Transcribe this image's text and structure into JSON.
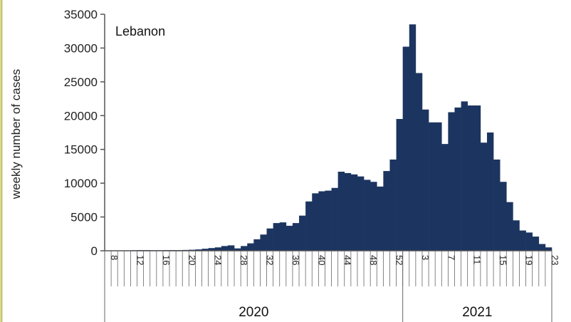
{
  "chart_data": {
    "type": "bar",
    "title": "Lebanon",
    "xlabel": "",
    "ylabel": "weekly number of cases",
    "ylim": [
      0,
      35000
    ],
    "yticks": [
      0,
      5000,
      10000,
      15000,
      20000,
      25000,
      30000,
      35000
    ],
    "grid": false,
    "legend": "none",
    "bar_color": "#1c3560",
    "year_groups": [
      {
        "label": "2020",
        "weeks": 46
      },
      {
        "label": "2021",
        "weeks": 23
      }
    ],
    "categories": [
      "8",
      "9",
      "10",
      "11",
      "12",
      "13",
      "14",
      "15",
      "16",
      "17",
      "18",
      "19",
      "20",
      "21",
      "22",
      "23",
      "24",
      "25",
      "26",
      "27",
      "28",
      "29",
      "30",
      "31",
      "32",
      "33",
      "34",
      "35",
      "36",
      "37",
      "38",
      "39",
      "40",
      "41",
      "42",
      "43",
      "44",
      "45",
      "46",
      "47",
      "48",
      "49",
      "50",
      "51",
      "52",
      "53",
      "1",
      "2",
      "3",
      "4",
      "5",
      "6",
      "7",
      "8",
      "9",
      "10",
      "11",
      "12",
      "13",
      "14",
      "15",
      "16",
      "17",
      "18",
      "19",
      "20",
      "21",
      "22",
      "23"
    ],
    "labeled_ticks": [
      "8",
      "12",
      "16",
      "20",
      "24",
      "28",
      "32",
      "36",
      "40",
      "44",
      "48",
      "52",
      "3",
      "7",
      "11",
      "15",
      "19",
      "23"
    ],
    "values": [
      10,
      20,
      40,
      60,
      80,
      100,
      100,
      80,
      80,
      100,
      100,
      100,
      120,
      150,
      200,
      300,
      400,
      500,
      700,
      800,
      350,
      700,
      1100,
      1700,
      2400,
      3300,
      4100,
      4200,
      3700,
      4100,
      5200,
      7300,
      8500,
      8800,
      8900,
      9300,
      11700,
      11500,
      11300,
      11000,
      10500,
      10200,
      9500,
      11800,
      13500,
      19500,
      30200,
      33500,
      26300,
      20900,
      19000,
      19000,
      15800,
      20500,
      21200,
      22100,
      21500,
      21500,
      16000,
      17500,
      13500,
      10200,
      7200,
      4500,
      3000,
      2700,
      2100,
      1000,
      500
    ]
  }
}
